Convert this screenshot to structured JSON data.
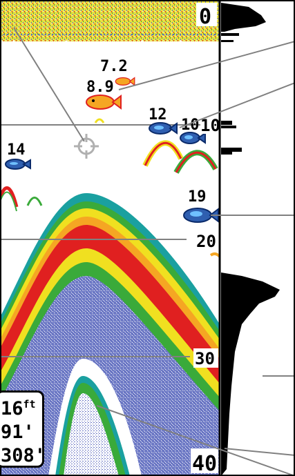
{
  "depth_scale": {
    "labels": [
      "0",
      "10",
      "20",
      "30",
      "40"
    ]
  },
  "fish_targets": [
    {
      "depth": "7.2",
      "color": "#f5a623"
    },
    {
      "depth": "8.9",
      "color": "#f5a623"
    },
    {
      "depth": "12",
      "color": "#2f5fb0"
    },
    {
      "depth": "10",
      "color": "#2f5fb0"
    },
    {
      "depth": "14",
      "color": "#2f5fb0"
    },
    {
      "depth": "19",
      "color": "#2f5fb0"
    }
  ],
  "readout": {
    "depth_value": "16",
    "depth_unit": "ft",
    "line2": "91'",
    "line3": "308'"
  },
  "icons": {
    "cursor": "crosshair-cursor-icon",
    "fish": "fish-icon"
  },
  "colors": {
    "signal_red": "#e02020",
    "signal_yellow": "#f0e020",
    "signal_green": "#22aa44",
    "signal_blue": "#6d79c5",
    "water_white": "#ffffff",
    "callout_line": "#808080"
  }
}
